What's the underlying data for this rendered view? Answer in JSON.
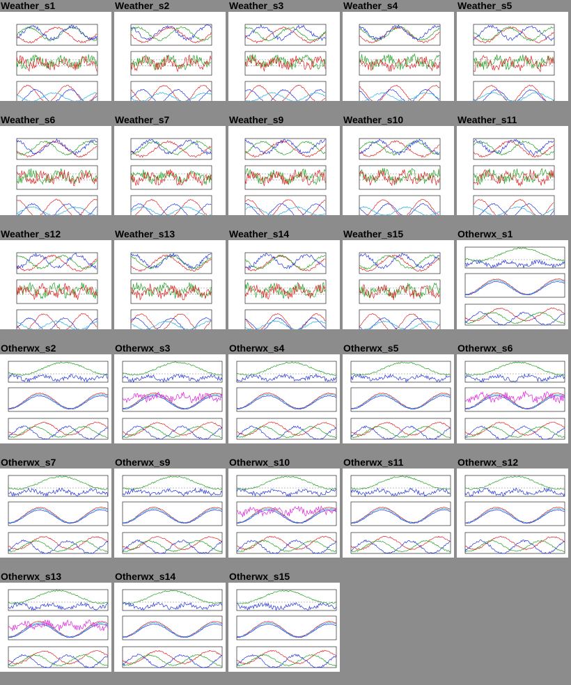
{
  "thumbnails": [
    {
      "label": "Weather_s1",
      "kind": "weather"
    },
    {
      "label": "Weather_s2",
      "kind": "weather"
    },
    {
      "label": "Weather_s3",
      "kind": "weather"
    },
    {
      "label": "Weather_s4",
      "kind": "weather"
    },
    {
      "label": "Weather_s5",
      "kind": "weather"
    },
    {
      "label": "Weather_s6",
      "kind": "weather"
    },
    {
      "label": "Weather_s7",
      "kind": "weather"
    },
    {
      "label": "Weather_s9",
      "kind": "weather"
    },
    {
      "label": "Weather_s10",
      "kind": "weather"
    },
    {
      "label": "Weather_s11",
      "kind": "weather"
    },
    {
      "label": "Weather_s12",
      "kind": "weather"
    },
    {
      "label": "Weather_s13",
      "kind": "weather"
    },
    {
      "label": "Weather_s14",
      "kind": "weather"
    },
    {
      "label": "Weather_s15",
      "kind": "weather"
    },
    {
      "label": "Otherwx_s1",
      "kind": "otherwx"
    },
    {
      "label": "Otherwx_s2",
      "kind": "otherwx"
    },
    {
      "label": "Otherwx_s3",
      "kind": "otherwx"
    },
    {
      "label": "Otherwx_s4",
      "kind": "otherwx"
    },
    {
      "label": "Otherwx_s5",
      "kind": "otherwx"
    },
    {
      "label": "Otherwx_s6",
      "kind": "otherwx"
    },
    {
      "label": "Otherwx_s7",
      "kind": "otherwx"
    },
    {
      "label": "Otherwx_s9",
      "kind": "otherwx"
    },
    {
      "label": "Otherwx_s10",
      "kind": "otherwx"
    },
    {
      "label": "Otherwx_s11",
      "kind": "otherwx"
    },
    {
      "label": "Otherwx_s12",
      "kind": "otherwx"
    },
    {
      "label": "Otherwx_s13",
      "kind": "otherwx"
    },
    {
      "label": "Otherwx_s14",
      "kind": "otherwx"
    },
    {
      "label": "Otherwx_s15",
      "kind": "otherwx"
    }
  ],
  "colors": {
    "page_background": "#8c8c8c",
    "thumbnail_background": "#ffffff",
    "series_red": "#e02020",
    "series_green": "#20a020",
    "series_blue": "#2030e0",
    "series_cyan": "#20b0e0",
    "series_magenta": "#e020e0"
  }
}
